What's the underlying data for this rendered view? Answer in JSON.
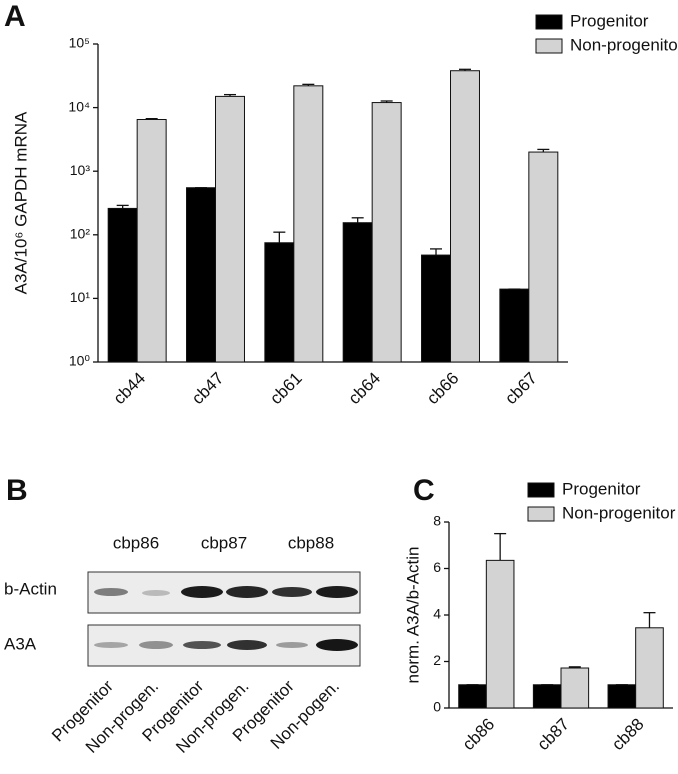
{
  "chart_data": [
    {
      "panel": "A",
      "type": "bar",
      "ylabel": "A3A/10⁶ GAPDH mRNA",
      "categories": [
        "cb44",
        "cb47",
        "cb61",
        "cb64",
        "cb66",
        "cb67"
      ],
      "series": [
        {
          "name": "Progenitor",
          "color": "#000000",
          "values": [
            260,
            550,
            75,
            155,
            48,
            14
          ],
          "errors": [
            30,
            0,
            35,
            30,
            12,
            0
          ]
        },
        {
          "name": "Non-progenitor",
          "color": "#d3d3d3",
          "values": [
            6500,
            15000,
            22000,
            12000,
            38000,
            2000
          ],
          "errors": [
            200,
            1000,
            1200,
            700,
            2000,
            200
          ]
        }
      ],
      "log_y": true,
      "ylim": [
        1,
        100000
      ],
      "yticks": [
        {
          "value": 1,
          "label": "10⁰"
        },
        {
          "value": 10,
          "label": "10¹"
        },
        {
          "value": 100,
          "label": "10²"
        },
        {
          "value": 1000,
          "label": "10³"
        },
        {
          "value": 10000,
          "label": "10⁴"
        },
        {
          "value": 100000,
          "label": "10⁵"
        }
      ]
    },
    {
      "panel": "C",
      "type": "bar",
      "ylabel": "norm. A3A/b-Actin",
      "categories": [
        "cb86",
        "cb87",
        "cb88"
      ],
      "series": [
        {
          "name": "Progenitor",
          "color": "#000000",
          "values": [
            1,
            1,
            1
          ],
          "errors": [
            0,
            0,
            0
          ]
        },
        {
          "name": "Non-progenitor",
          "color": "#d3d3d3",
          "values": [
            6.35,
            1.72,
            3.45
          ],
          "errors": [
            1.15,
            0.05,
            0.65
          ]
        }
      ],
      "log_y": false,
      "ylim": [
        0,
        8
      ],
      "yticks": [
        0,
        2,
        4,
        6,
        8
      ]
    }
  ],
  "blot": {
    "panel": "B",
    "samples": [
      "cbp86",
      "cbp87",
      "cbp88"
    ],
    "rows": [
      "b-Actin",
      "A3A"
    ],
    "lanes": [
      "Progenitor",
      "Non-progen.",
      "Progenitor",
      "Non-progen.",
      "Progenitor",
      "Non-pogen."
    ]
  }
}
